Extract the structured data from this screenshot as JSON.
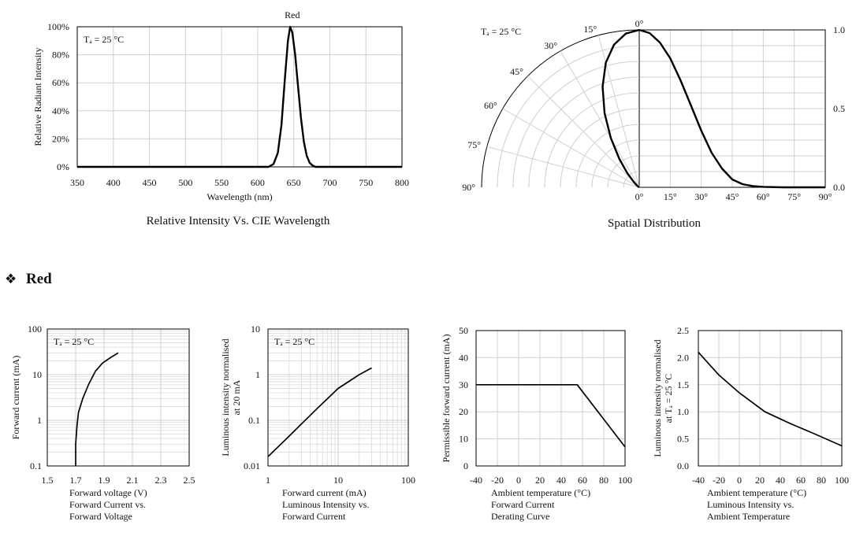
{
  "section": {
    "bullet": "❖",
    "title": "Red"
  },
  "chart_data": [
    {
      "type": "line",
      "series_label": "Red",
      "annotation": "Tₐ = 25 °C",
      "title": "Relative Intensity Vs. CIE Wavelength",
      "xlabel": "Wavelength (nm)",
      "ylabel": "Relative  Radiant  Intensity",
      "xlim": [
        350,
        800
      ],
      "ylim": [
        0,
        100
      ],
      "x_ticks": [
        "350",
        "400",
        "450",
        "500",
        "550",
        "600",
        "650",
        "700",
        "750",
        "800"
      ],
      "y_ticks": [
        "0%",
        "20%",
        "40%",
        "60%",
        "80%",
        "100%"
      ],
      "grid": true,
      "series": [
        {
          "x": [
            350,
            600,
            615,
            622,
            628,
            633,
            638,
            642,
            645,
            648,
            652,
            656,
            660,
            664,
            668,
            672,
            676,
            680,
            690,
            800
          ],
          "values": [
            0,
            0,
            0,
            2,
            10,
            30,
            65,
            90,
            100,
            96,
            80,
            57,
            35,
            18,
            8,
            3,
            1,
            0,
            0,
            0
          ]
        }
      ]
    },
    {
      "type": "line",
      "polar": true,
      "annotation": "Tₐ = 25 °C",
      "title": "Spatial Distribution",
      "angle_ticks": [
        "0°",
        "15°",
        "30°",
        "45°",
        "60°",
        "75°",
        "90°"
      ],
      "x_ticks": [
        "0°",
        "15°",
        "30°",
        "45°",
        "60°",
        "75°",
        "90°"
      ],
      "y_ticks": [
        "0.0",
        "0.5",
        "1.0"
      ],
      "xlim": [
        0,
        90
      ],
      "ylim": [
        0,
        1
      ],
      "series": [
        {
          "x": [
            0,
            5,
            10,
            15,
            20,
            25,
            30,
            35,
            40,
            45,
            50,
            55,
            60,
            70,
            80,
            90
          ],
          "values": [
            1.0,
            0.98,
            0.92,
            0.82,
            0.68,
            0.52,
            0.36,
            0.22,
            0.12,
            0.05,
            0.02,
            0.008,
            0.003,
            0,
            0,
            0
          ]
        }
      ]
    },
    {
      "type": "line",
      "annotation": "Tₐ = 25 °C",
      "xlabel": "Forward voltage (V)",
      "ylabel": "Forward current (mA)",
      "caption": [
        "Forward Current vs.",
        "Forward Voltage"
      ],
      "xlim": [
        1.5,
        2.5
      ],
      "ylim": [
        0.1,
        100
      ],
      "y_scale": "log",
      "x_ticks": [
        "1.5",
        "1.7",
        "1.9",
        "2.1",
        "2.3",
        "2.5"
      ],
      "y_ticks": [
        "0.1",
        "1",
        "10",
        "100"
      ],
      "series": [
        {
          "x": [
            1.7,
            1.7,
            1.71,
            1.72,
            1.75,
            1.79,
            1.84,
            1.89,
            1.94,
            2.0
          ],
          "values": [
            0.1,
            0.3,
            0.8,
            1.5,
            3,
            6,
            12,
            18,
            23,
            30
          ]
        }
      ]
    },
    {
      "type": "line",
      "annotation": "Tₐ = 25 °C",
      "xlabel": "Forward current (mA)",
      "ylabel": "Luminous intensity normalised",
      "ylabel2": "at 20 mA",
      "caption": [
        "Luminous Intensity vs.",
        "Forward Current"
      ],
      "xlim": [
        1,
        100
      ],
      "ylim": [
        0.01,
        10
      ],
      "x_scale": "log",
      "y_scale": "log",
      "x_ticks": [
        "1",
        "10",
        "100"
      ],
      "y_ticks": [
        "0.01",
        "0.1",
        "1",
        "10"
      ],
      "series": [
        {
          "x": [
            1,
            2,
            5,
            10,
            20,
            30
          ],
          "values": [
            0.016,
            0.045,
            0.18,
            0.5,
            1.0,
            1.4
          ]
        }
      ]
    },
    {
      "type": "line",
      "xlabel": "Ambient temperature (°C)",
      "ylabel": "Permissible forward current (mA)",
      "caption": [
        "Forward Current",
        "Derating  Curve"
      ],
      "xlim": [
        -40,
        100
      ],
      "ylim": [
        0,
        50
      ],
      "x_ticks": [
        "-40",
        "-20",
        "0",
        "20",
        "40",
        "60",
        "80",
        "100"
      ],
      "y_ticks": [
        "0",
        "10",
        "20",
        "30",
        "40",
        "50"
      ],
      "series": [
        {
          "x": [
            -40,
            55,
            100
          ],
          "values": [
            30,
            30,
            7
          ]
        }
      ]
    },
    {
      "type": "line",
      "xlabel": "Ambient temperature (°C)",
      "ylabel": "Luminous intensity normalised",
      "ylabel2": "at Tₐ = 25 °C",
      "caption": [
        "Luminous Intensity vs.",
        "Ambient Temperature"
      ],
      "xlim": [
        -40,
        100
      ],
      "ylim": [
        0,
        2.5
      ],
      "x_ticks": [
        "-40",
        "-20",
        "0",
        "20",
        "40",
        "60",
        "80",
        "100"
      ],
      "y_ticks": [
        "0.0",
        "0.5",
        "1.0",
        "1.5",
        "2.0",
        "2.5"
      ],
      "series": [
        {
          "x": [
            -40,
            -20,
            0,
            25,
            50,
            75,
            100
          ],
          "values": [
            2.1,
            1.68,
            1.35,
            1.0,
            0.78,
            0.58,
            0.37
          ]
        }
      ]
    }
  ]
}
